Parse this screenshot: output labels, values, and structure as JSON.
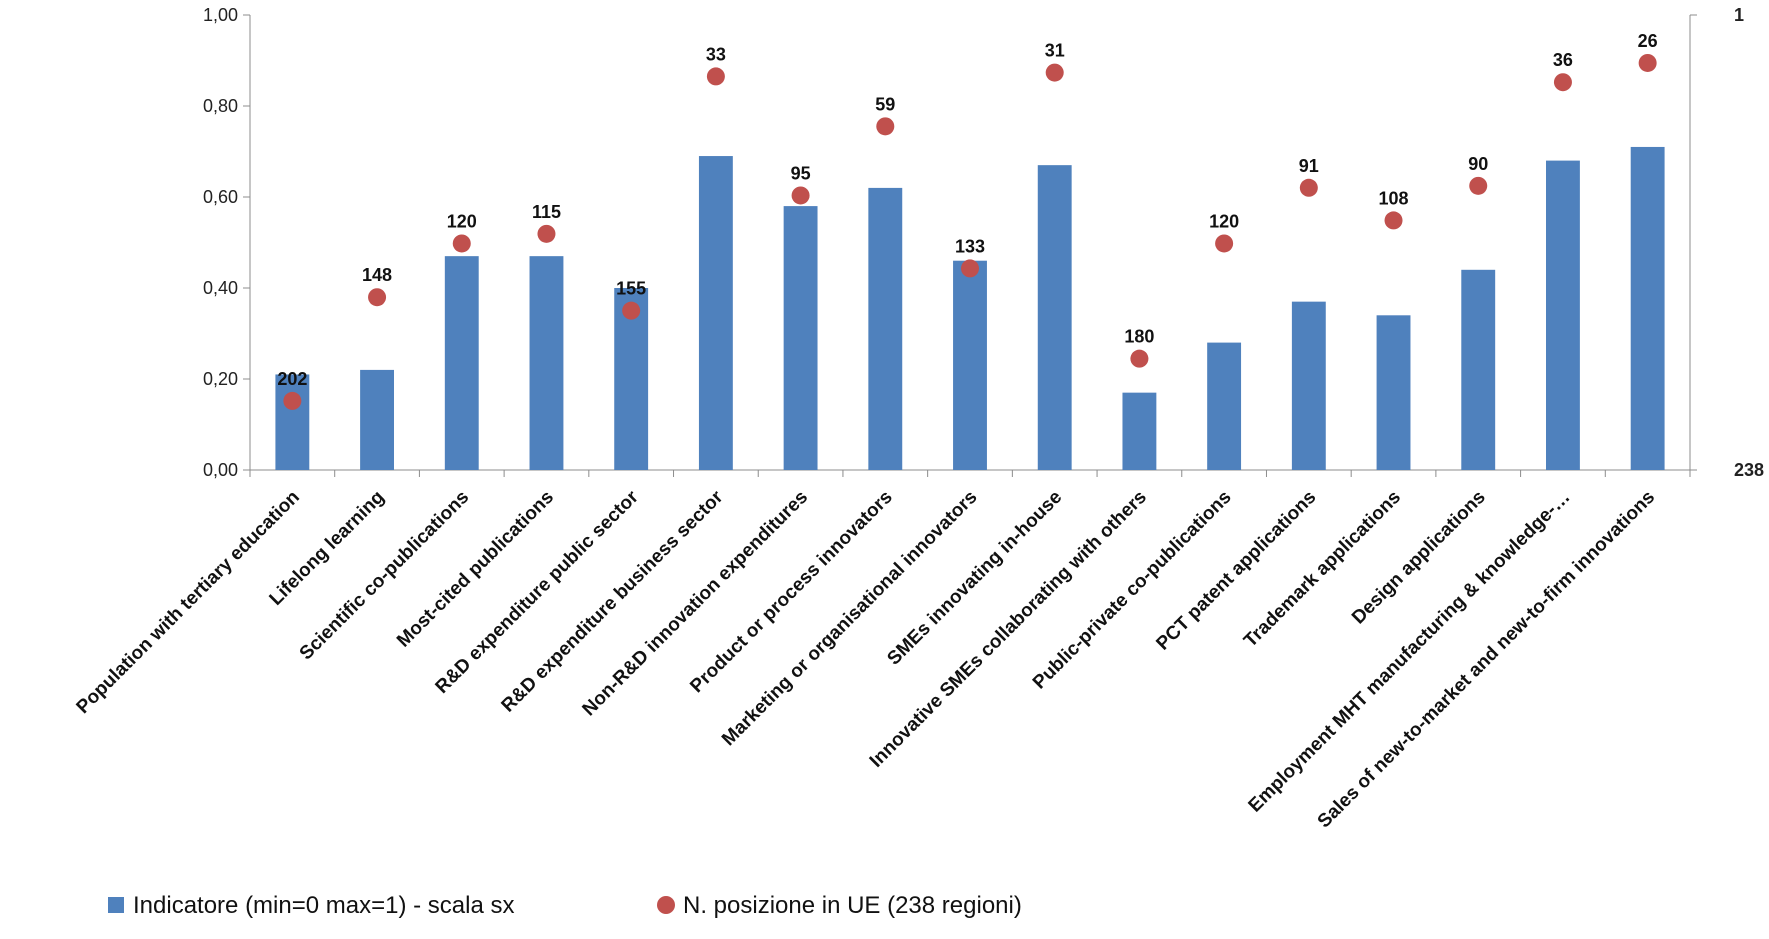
{
  "chart_data": {
    "type": "bar",
    "categories": [
      "Population with tertiary education",
      "Lifelong learning",
      "Scientific co-publications",
      "Most-cited publications",
      "R&D expenditure public sector",
      "R&D expenditure business sector",
      "Non-R&D innovation expenditures",
      "Product or process innovators",
      "Marketing or organisational innovators",
      "SMEs innovating in-house",
      "Innovative SMEs collaborating with others",
      "Public-private co-publications",
      "PCT patent applications",
      "Trademark applications",
      "Design applications",
      "Employment MHT manufacturing & knowledge-…",
      "Sales of new-to-market and new-to-firm innovations"
    ],
    "series": [
      {
        "name": "Indicatore (min=0 max=1) - scala sx",
        "type": "bar",
        "axis": "left",
        "color": "#4F81BD",
        "values": [
          0.21,
          0.22,
          0.47,
          0.47,
          0.4,
          0.69,
          0.58,
          0.62,
          0.46,
          0.67,
          0.17,
          0.28,
          0.37,
          0.34,
          0.44,
          0.68,
          0.71
        ]
      },
      {
        "name": "N. posizione in UE (238 regioni)",
        "type": "scatter",
        "axis": "right",
        "color": "#C0504D",
        "values": [
          202,
          148,
          120,
          115,
          155,
          33,
          95,
          59,
          133,
          31,
          180,
          120,
          91,
          108,
          90,
          36,
          26
        ],
        "labels": [
          "202",
          "148",
          "120",
          "115",
          "155",
          "33",
          "95",
          "59",
          "133",
          "31",
          "180",
          "120",
          "91",
          "108",
          "90",
          "36",
          "26"
        ]
      }
    ],
    "y_left": {
      "ylim": [
        0,
        1
      ],
      "ticks": [
        "0,00",
        "0,20",
        "0,40",
        "0,60",
        "0,80",
        "1,00"
      ]
    },
    "y_right": {
      "ylim": [
        238,
        1
      ],
      "ticks": [
        "238",
        "1"
      ]
    },
    "legend_position": "bottom",
    "grid": false
  }
}
